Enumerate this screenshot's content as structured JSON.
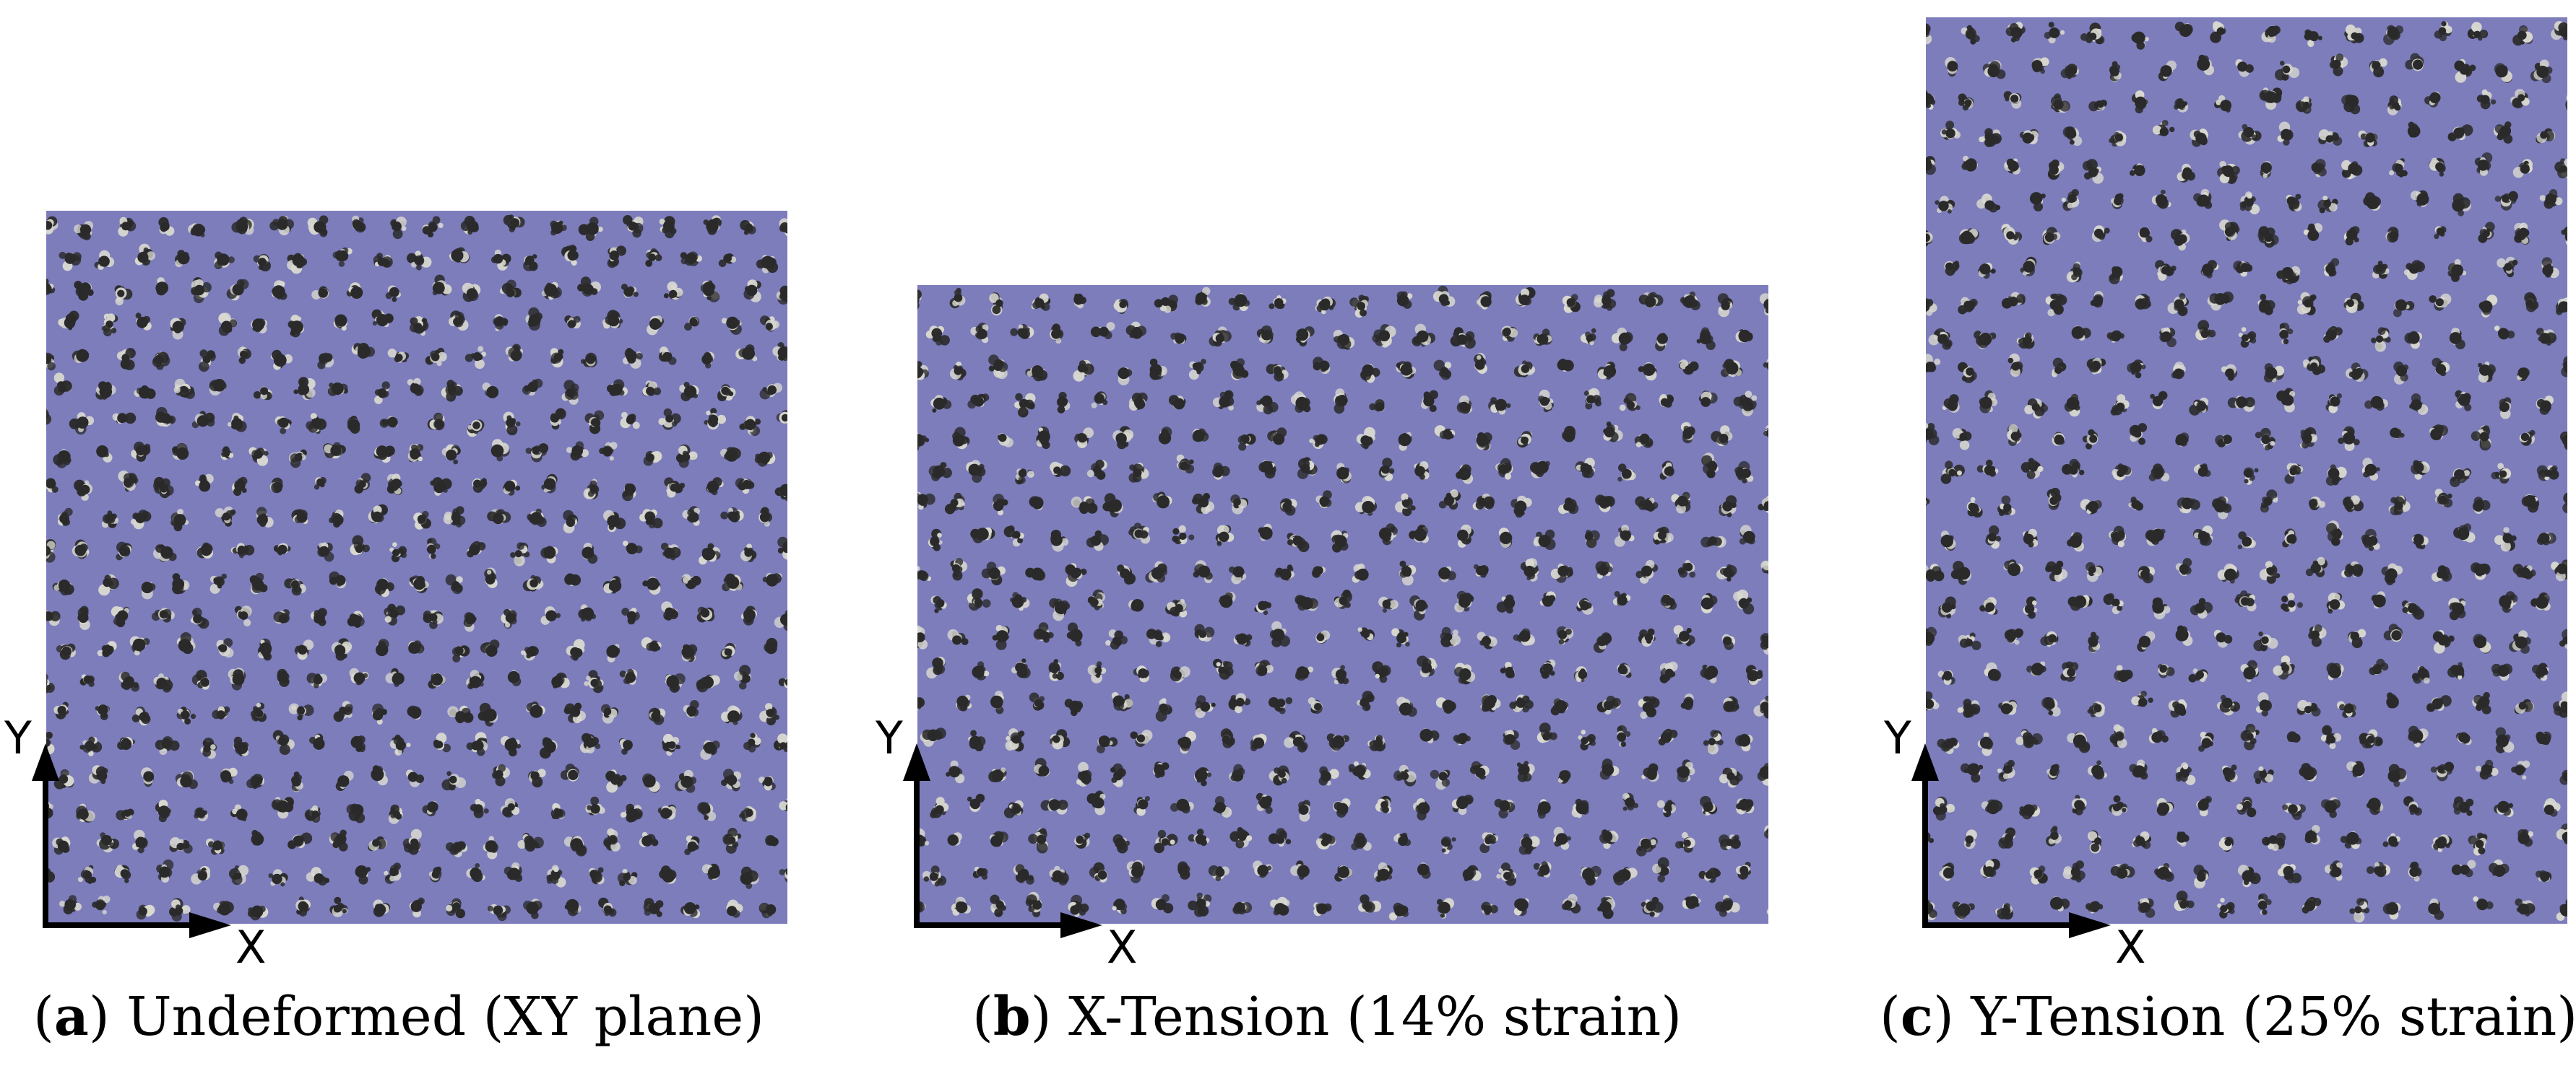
{
  "panels": [
    {
      "id": "a",
      "letter": "a",
      "caption": "Undeformed (XY plane)",
      "axis_x": "X",
      "axis_y": "Y",
      "strain_percent": 0,
      "tension_direction": "none"
    },
    {
      "id": "b",
      "letter": "b",
      "caption": "X-Tension (14% strain)",
      "axis_x": "X",
      "axis_y": "Y",
      "strain_percent": 14,
      "tension_direction": "x"
    },
    {
      "id": "c",
      "letter": "c",
      "caption": "Y-Tension (25% strain)",
      "axis_x": "X",
      "axis_y": "Y",
      "strain_percent": 25,
      "tension_direction": "y"
    }
  ],
  "colors": {
    "matrix": "#7d7dbc",
    "cluster_dark": "#2a2a2a",
    "cluster_light": "#d8d8d0",
    "axes": "#000000"
  }
}
